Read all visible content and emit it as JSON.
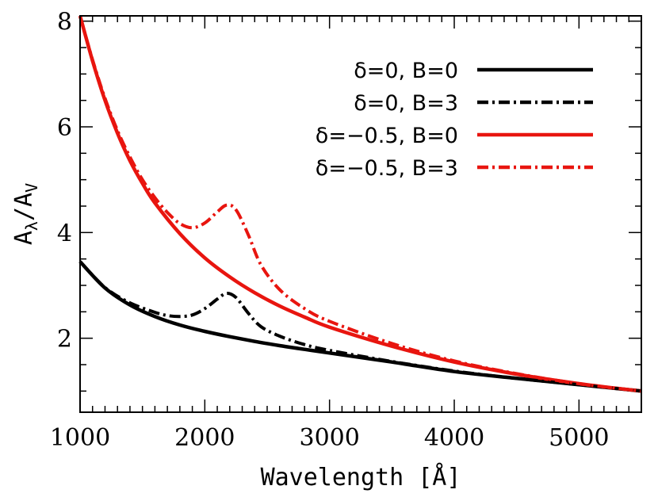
{
  "chart_data": {
    "type": "line",
    "xlabel": "Wavelength [Å]",
    "ylabel": "A_λ/A_V",
    "ylabel_main": "A",
    "ylabel_sub1": "λ",
    "ylabel_sep": "/A",
    "ylabel_sub2": "V",
    "xlim": [
      1000,
      5500
    ],
    "ylim": [
      0.6,
      8.1
    ],
    "x_ticks": [
      1000,
      2000,
      3000,
      4000,
      5000
    ],
    "x_tick_labels": [
      "1000",
      "2000",
      "3000",
      "4000",
      "5000"
    ],
    "y_ticks": [
      2,
      4,
      6,
      8
    ],
    "y_tick_labels": [
      "2",
      "4",
      "6",
      "8"
    ],
    "legend_position": "top-right",
    "series": [
      {
        "name": "δ=0, B=0",
        "color": "#000000",
        "style": "solid",
        "x": [
          1000,
          1200,
          1400,
          1600,
          1800,
          2000,
          2200,
          2400,
          2600,
          2800,
          3000,
          3500,
          4000,
          4500,
          5000,
          5500
        ],
        "y": [
          3.45,
          2.95,
          2.63,
          2.41,
          2.25,
          2.13,
          2.03,
          1.94,
          1.86,
          1.79,
          1.72,
          1.55,
          1.37,
          1.24,
          1.12,
          1.0
        ]
      },
      {
        "name": "δ=0, B=3",
        "color": "#000000",
        "style": "dashdot",
        "x": [
          1000,
          1200,
          1400,
          1600,
          1700,
          1800,
          1900,
          2000,
          2100,
          2175,
          2250,
          2350,
          2450,
          2600,
          2800,
          3000,
          3500,
          4000,
          4500,
          5000,
          5500
        ],
        "y": [
          3.45,
          2.96,
          2.67,
          2.49,
          2.43,
          2.41,
          2.44,
          2.56,
          2.74,
          2.85,
          2.77,
          2.47,
          2.22,
          2.04,
          1.88,
          1.77,
          1.56,
          1.38,
          1.24,
          1.12,
          1.0
        ]
      },
      {
        "name": "δ=−0.5, B=0",
        "color": "#e8150f",
        "style": "solid",
        "x": [
          1000,
          1100,
          1200,
          1300,
          1400,
          1500,
          1600,
          1800,
          2000,
          2200,
          2400,
          2600,
          2800,
          3000,
          3500,
          4000,
          4500,
          5000,
          5500
        ],
        "y": [
          8.1,
          7.25,
          6.5,
          5.88,
          5.36,
          4.93,
          4.56,
          3.98,
          3.52,
          3.16,
          2.86,
          2.61,
          2.4,
          2.21,
          1.85,
          1.55,
          1.32,
          1.14,
          1.0
        ]
      },
      {
        "name": "δ=−0.5, B=3",
        "color": "#e8150f",
        "style": "dashdot",
        "x": [
          1000,
          1100,
          1200,
          1300,
          1400,
          1500,
          1600,
          1700,
          1800,
          1900,
          2000,
          2100,
          2175,
          2250,
          2350,
          2450,
          2600,
          2800,
          3000,
          3500,
          4000,
          4500,
          5000,
          5500
        ],
        "y": [
          8.1,
          7.27,
          6.54,
          5.93,
          5.43,
          5.0,
          4.66,
          4.38,
          4.17,
          4.09,
          4.18,
          4.39,
          4.52,
          4.43,
          3.95,
          3.39,
          2.92,
          2.56,
          2.32,
          1.9,
          1.57,
          1.33,
          1.14,
          1.0
        ]
      }
    ]
  }
}
